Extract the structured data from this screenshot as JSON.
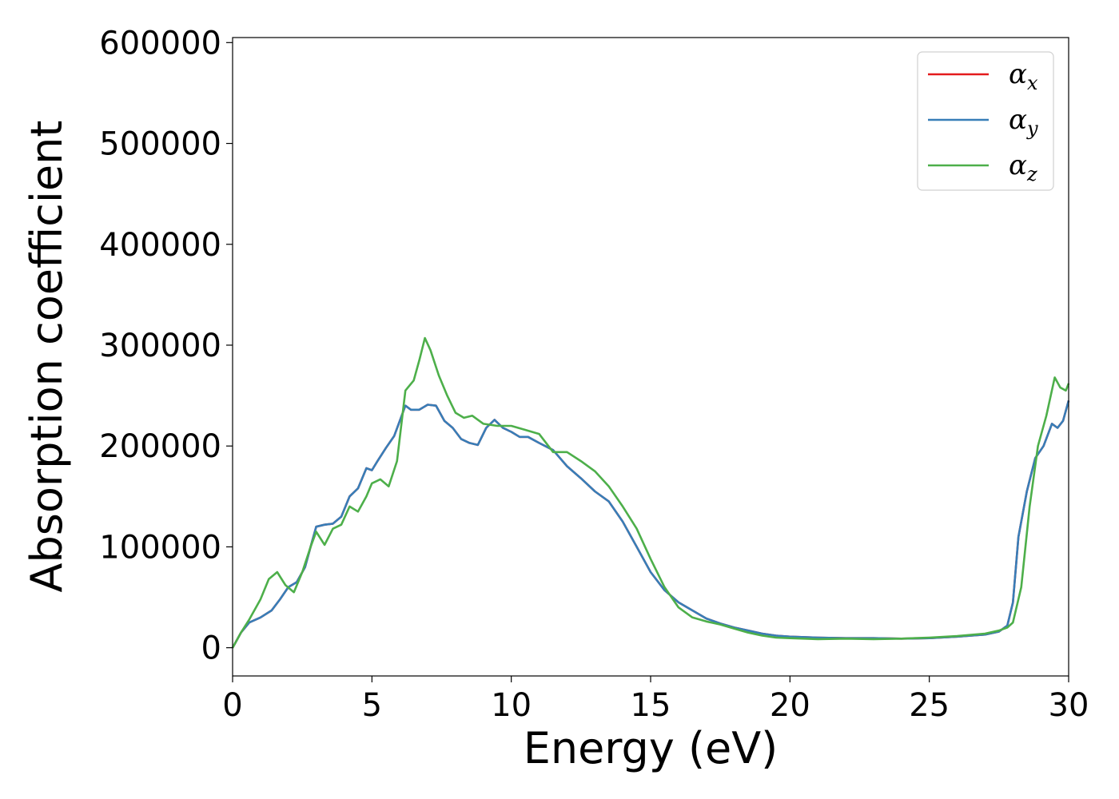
{
  "chart_data": {
    "type": "line",
    "title": "",
    "xlabel": "Energy (eV)",
    "ylabel": "Absorption coefficient",
    "xlim": [
      0,
      30
    ],
    "ylim": [
      -28000,
      605000
    ],
    "xticks": [
      0,
      5,
      10,
      15,
      20,
      25,
      30
    ],
    "yticks": [
      0,
      100000,
      200000,
      300000,
      400000,
      500000,
      600000
    ],
    "grid": false,
    "legend_position": "top-right",
    "series": [
      {
        "name": "α",
        "subscript": "x",
        "color": "#e41a1c",
        "x": [
          0,
          0.3,
          0.6,
          1.0,
          1.4,
          1.7,
          2.0,
          2.3,
          2.6,
          2.8,
          3.0,
          3.3,
          3.6,
          3.9,
          4.2,
          4.5,
          4.8,
          5.0,
          5.2,
          5.5,
          5.8,
          6.0,
          6.2,
          6.4,
          6.7,
          7.0,
          7.3,
          7.6,
          7.9,
          8.2,
          8.5,
          8.8,
          9.1,
          9.4,
          9.7,
          10.0,
          10.3,
          10.6,
          11.0,
          11.5,
          12.0,
          12.5,
          13.0,
          13.5,
          14.0,
          14.5,
          15.0,
          15.5,
          16.0,
          16.5,
          17.0,
          17.5,
          18.0,
          18.5,
          19.0,
          19.5,
          20.0,
          21.0,
          22.0,
          23.0,
          24.0,
          25.0,
          26.0,
          27.0,
          27.5,
          27.8,
          28.0,
          28.2,
          28.5,
          28.8,
          29.1,
          29.4,
          29.6,
          29.8,
          30.0
        ],
        "y": [
          0,
          15000,
          25000,
          30000,
          37000,
          48000,
          60000,
          65000,
          80000,
          100000,
          120000,
          122000,
          123000,
          130000,
          150000,
          158000,
          178000,
          176000,
          185000,
          198000,
          210000,
          225000,
          240000,
          236000,
          236000,
          241000,
          240000,
          225000,
          218000,
          207000,
          203000,
          201000,
          218000,
          226000,
          218000,
          214000,
          209000,
          209000,
          203000,
          196000,
          180000,
          168000,
          155000,
          145000,
          125000,
          100000,
          75000,
          57000,
          45000,
          37000,
          29000,
          24000,
          20000,
          17000,
          14000,
          12000,
          11000,
          10000,
          9500,
          9500,
          9000,
          9500,
          11000,
          13000,
          16000,
          22000,
          45000,
          110000,
          155000,
          188000,
          200000,
          222000,
          218000,
          225000,
          245000
        ]
      },
      {
        "name": "α",
        "subscript": "y",
        "color": "#377eb8",
        "x": [
          0,
          0.3,
          0.6,
          1.0,
          1.4,
          1.7,
          2.0,
          2.3,
          2.6,
          2.8,
          3.0,
          3.3,
          3.6,
          3.9,
          4.2,
          4.5,
          4.8,
          5.0,
          5.2,
          5.5,
          5.8,
          6.0,
          6.2,
          6.4,
          6.7,
          7.0,
          7.3,
          7.6,
          7.9,
          8.2,
          8.5,
          8.8,
          9.1,
          9.4,
          9.7,
          10.0,
          10.3,
          10.6,
          11.0,
          11.5,
          12.0,
          12.5,
          13.0,
          13.5,
          14.0,
          14.5,
          15.0,
          15.5,
          16.0,
          16.5,
          17.0,
          17.5,
          18.0,
          18.5,
          19.0,
          19.5,
          20.0,
          21.0,
          22.0,
          23.0,
          24.0,
          25.0,
          26.0,
          27.0,
          27.5,
          27.8,
          28.0,
          28.2,
          28.5,
          28.8,
          29.1,
          29.4,
          29.6,
          29.8,
          30.0
        ],
        "y": [
          0,
          15000,
          25000,
          30000,
          37000,
          48000,
          60000,
          65000,
          80000,
          100000,
          120000,
          122000,
          123000,
          130000,
          150000,
          158000,
          178000,
          176000,
          185000,
          198000,
          210000,
          225000,
          240000,
          236000,
          236000,
          241000,
          240000,
          225000,
          218000,
          207000,
          203000,
          201000,
          218000,
          226000,
          218000,
          214000,
          209000,
          209000,
          203000,
          196000,
          180000,
          168000,
          155000,
          145000,
          125000,
          100000,
          75000,
          57000,
          45000,
          37000,
          29000,
          24000,
          20000,
          17000,
          14000,
          12000,
          11000,
          10000,
          9500,
          9500,
          9000,
          9500,
          11000,
          13000,
          16000,
          22000,
          45000,
          110000,
          155000,
          188000,
          200000,
          222000,
          218000,
          225000,
          245000
        ]
      },
      {
        "name": "α",
        "subscript": "z",
        "color": "#4daf4a",
        "x": [
          0,
          0.3,
          0.6,
          1.0,
          1.3,
          1.6,
          1.9,
          2.2,
          2.5,
          2.8,
          3.0,
          3.3,
          3.6,
          3.9,
          4.2,
          4.5,
          4.8,
          5.0,
          5.3,
          5.6,
          5.9,
          6.2,
          6.5,
          6.7,
          6.9,
          7.1,
          7.4,
          7.7,
          8.0,
          8.3,
          8.6,
          9.0,
          9.5,
          10.0,
          10.5,
          11.0,
          11.5,
          12.0,
          12.5,
          13.0,
          13.5,
          14.0,
          14.5,
          15.0,
          15.5,
          16.0,
          16.5,
          17.0,
          17.5,
          18.0,
          18.5,
          19.0,
          19.5,
          20.0,
          21.0,
          22.0,
          23.0,
          24.0,
          25.0,
          26.0,
          27.0,
          27.5,
          27.8,
          28.0,
          28.3,
          28.6,
          28.9,
          29.2,
          29.5,
          29.7,
          29.9,
          30.0
        ],
        "y": [
          0,
          15000,
          28000,
          48000,
          68000,
          75000,
          62000,
          55000,
          75000,
          100000,
          115000,
          102000,
          118000,
          122000,
          140000,
          135000,
          150000,
          163000,
          167000,
          160000,
          185000,
          255000,
          265000,
          285000,
          307000,
          295000,
          270000,
          250000,
          233000,
          228000,
          230000,
          222000,
          220000,
          220000,
          216000,
          212000,
          194000,
          194000,
          185000,
          175000,
          160000,
          140000,
          118000,
          88000,
          60000,
          40000,
          30000,
          26000,
          23000,
          19000,
          15000,
          12000,
          10000,
          9500,
          8500,
          9000,
          8500,
          9000,
          10000,
          11500,
          14000,
          17000,
          20000,
          25000,
          60000,
          140000,
          200000,
          230000,
          268000,
          258000,
          255000,
          262000
        ]
      }
    ]
  }
}
